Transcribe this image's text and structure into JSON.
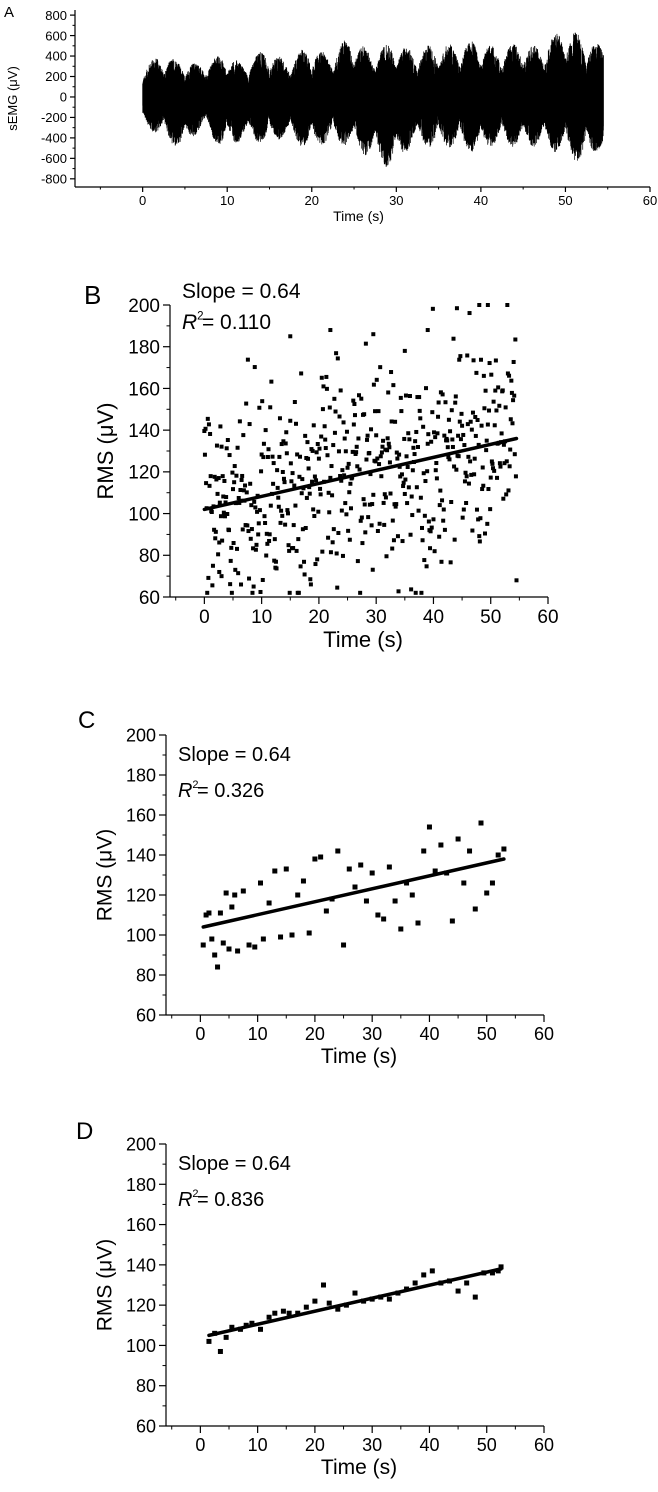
{
  "chart_data": [
    {
      "panel_label": "A",
      "type": "line",
      "title": "",
      "xlabel": "Time (s)",
      "ylabel": "sEMG (μV)",
      "xlim": [
        -8,
        60
      ],
      "ylim": [
        -880,
        850
      ],
      "xticks": [
        0,
        10,
        20,
        30,
        40,
        50,
        60
      ],
      "yticks": [
        -800,
        -600,
        -400,
        -200,
        0,
        200,
        400,
        600,
        800
      ],
      "signal_duration_s": 54.5,
      "envelope": {
        "t": [
          0.0,
          2.0,
          4.5,
          7.0,
          9.5,
          12.0,
          14.5,
          17.0,
          19.5,
          22.0,
          24.5,
          27.0,
          29.5,
          32.0,
          34.5,
          37.0,
          39.5,
          42.0,
          44.5,
          47.0,
          49.5,
          52.0,
          54.5
        ],
        "max": [
          300,
          420,
          360,
          330,
          430,
          330,
          480,
          360,
          500,
          420,
          600,
          450,
          540,
          470,
          520,
          520,
          560,
          480,
          540,
          500,
          680,
          610,
          500
        ],
        "min": [
          -280,
          -380,
          -540,
          -310,
          -520,
          -410,
          -470,
          -390,
          -520,
          -450,
          -490,
          -600,
          -720,
          -460,
          -510,
          -500,
          -560,
          -460,
          -500,
          -480,
          -570,
          -660,
          -500
        ]
      },
      "grid": false,
      "legend": "none",
      "color": "#000000"
    },
    {
      "panel_label": "B",
      "type": "scatter",
      "title": "",
      "xlabel": "Time (s)",
      "ylabel": "RMS (μV)",
      "xlim": [
        -6,
        60
      ],
      "ylim": [
        60,
        200
      ],
      "xticks": [
        0,
        10,
        20,
        30,
        40,
        50,
        60
      ],
      "yticks": [
        60,
        80,
        100,
        120,
        140,
        160,
        180,
        200
      ],
      "annotations": {
        "slope": "Slope = 0.64",
        "r_symbol": "R",
        "r_sup": "2",
        "r_value": " = 0.110"
      },
      "fit": {
        "slope": 0.64,
        "x": [
          0,
          54.5
        ],
        "y": [
          102,
          136
        ]
      },
      "points": {
        "count": 545,
        "x_start": 0,
        "x_end": 54.5,
        "x_step": 0.1,
        "mean_intercept": 102,
        "mean_slope": 0.64,
        "spread_sd": 26,
        "min": 62,
        "max": 200,
        "examples": [
          [
            2.6,
            72
          ],
          [
            3.0,
            70
          ],
          [
            6.4,
            66
          ],
          [
            15.0,
            185
          ],
          [
            22.0,
            188
          ],
          [
            29.5,
            186
          ],
          [
            35.0,
            178
          ],
          [
            39.0,
            188
          ],
          [
            48.0,
            200
          ],
          [
            49.5,
            200
          ],
          [
            54.5,
            68
          ]
        ]
      },
      "grid": false,
      "legend": "none"
    },
    {
      "panel_label": "C",
      "type": "scatter",
      "title": "",
      "xlabel": "Time (s)",
      "ylabel": "RMS (μV)",
      "xlim": [
        -6,
        60
      ],
      "ylim": [
        60,
        200
      ],
      "xticks": [
        0,
        10,
        20,
        30,
        40,
        50,
        60
      ],
      "yticks": [
        60,
        80,
        100,
        120,
        140,
        160,
        180,
        200
      ],
      "annotations": {
        "slope": "Slope = 0.64",
        "r_symbol": "R",
        "r_sup": "2",
        "r_value": " = 0.326"
      },
      "fit": {
        "slope": 0.64,
        "x": [
          0.5,
          53
        ],
        "y": [
          104,
          138
        ]
      },
      "points": {
        "x": [
          0.5,
          1.0,
          1.5,
          2.0,
          2.5,
          3.0,
          3.5,
          4.0,
          4.5,
          5.0,
          5.5,
          6.0,
          6.5,
          7.5,
          8.5,
          9.5,
          10.5,
          11.0,
          12.0,
          13.0,
          14.0,
          15.0,
          16.0,
          17.0,
          18.0,
          19.0,
          20.0,
          21.0,
          22.0,
          23.0,
          24.0,
          25.0,
          26.0,
          27.0,
          28.0,
          29.0,
          30.0,
          31.0,
          32.0,
          33.0,
          34.0,
          35.0,
          36.0,
          37.0,
          38.0,
          39.0,
          40.0,
          41.0,
          42.0,
          43.0,
          44.0,
          45.0,
          46.0,
          47.0,
          48.0,
          49.0,
          50.0,
          51.0,
          52.0,
          53.0
        ],
        "y": [
          95,
          110,
          111,
          98,
          90,
          84,
          111,
          96,
          121,
          93,
          114,
          120,
          92,
          122,
          95,
          94,
          126,
          98,
          116,
          132,
          99,
          133,
          100,
          120,
          127,
          101,
          138,
          139,
          112,
          118,
          142,
          95,
          133,
          124,
          135,
          117,
          131,
          110,
          108,
          134,
          117,
          103,
          126,
          120,
          106,
          142,
          154,
          132,
          145,
          131,
          107,
          148,
          126,
          142,
          113,
          156,
          121,
          126,
          140,
          143
        ]
      },
      "grid": false,
      "legend": "none"
    },
    {
      "panel_label": "D",
      "type": "scatter",
      "title": "",
      "xlabel": "Time (s)",
      "ylabel": "RMS (μV)",
      "xlim": [
        -6,
        60
      ],
      "ylim": [
        60,
        200
      ],
      "xticks": [
        0,
        10,
        20,
        30,
        40,
        50,
        60
      ],
      "yticks": [
        60,
        80,
        100,
        120,
        140,
        160,
        180,
        200
      ],
      "annotations": {
        "slope": "Slope = 0.64",
        "r_symbol": "R",
        "r_sup": "2",
        "r_value": " = 0.836"
      },
      "fit": {
        "slope": 0.64,
        "x": [
          1.5,
          52.5
        ],
        "y": [
          105,
          138
        ]
      },
      "points": {
        "x": [
          1.5,
          2.5,
          3.5,
          4.5,
          5.5,
          7.0,
          8.0,
          9.0,
          10.5,
          12.0,
          13.0,
          14.5,
          15.5,
          17.0,
          18.5,
          20.0,
          21.5,
          22.5,
          24.0,
          25.5,
          27.0,
          28.5,
          30.0,
          31.5,
          33.0,
          34.5,
          36.0,
          37.5,
          39.0,
          40.5,
          42.0,
          43.5,
          45.0,
          46.5,
          48.0,
          49.5,
          51.0,
          52.0,
          52.5
        ],
        "y": [
          102,
          106,
          97,
          104,
          109,
          108,
          110,
          111,
          108,
          114,
          116,
          117,
          116,
          116,
          119,
          122,
          130,
          121,
          118,
          120,
          126,
          122,
          123,
          124,
          123,
          126,
          128,
          131,
          135,
          137,
          131,
          132,
          127,
          131,
          124,
          136,
          136,
          137,
          139
        ]
      },
      "grid": false,
      "legend": "none"
    }
  ]
}
